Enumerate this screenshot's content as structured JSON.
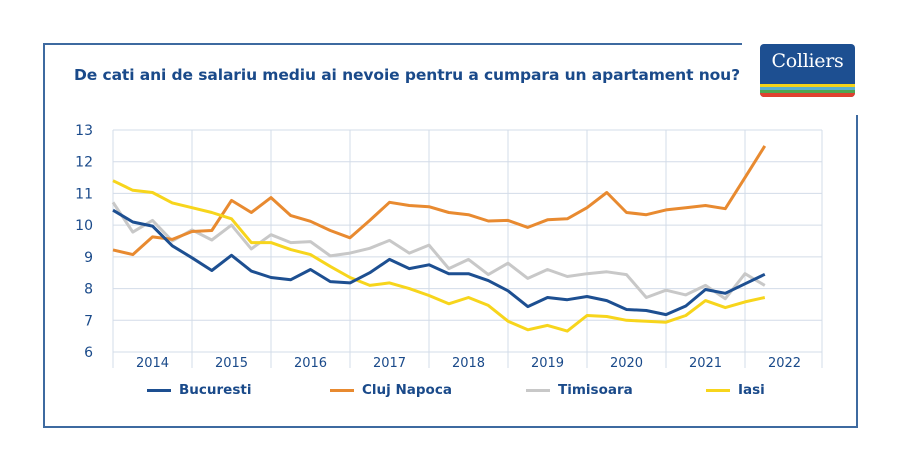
{
  "title": "De cati ani de salariu mediu ai nevoie pentru a cumpara un apartament nou?",
  "logo": {
    "text": "Colliers",
    "icon": "colliers-logo"
  },
  "colors": {
    "frame": "#3e6aa0",
    "text": "#1a4a8a",
    "grid": "#d3dce8",
    "Bucuresti": "#1d4f91",
    "Cluj Napoca": "#e88a30",
    "Timisoara": "#c8c8c8",
    "Iasi": "#f7d51c"
  },
  "chart_data": {
    "type": "line",
    "title": "De cati ani de salariu mediu ai nevoie pentru a cumpara un apartament nou?",
    "xlabel": "",
    "ylabel": "",
    "ylim": [
      6,
      13
    ],
    "yticks": [
      "6",
      "7",
      "8",
      "9",
      "10",
      "11",
      "12",
      "13"
    ],
    "xticks": [
      "2014",
      "2015",
      "2016",
      "2017",
      "2018",
      "2019",
      "2020",
      "2021",
      "2022"
    ],
    "x_periods": "quarterly, 2014 Q1 to 2022 Q2",
    "grid": true,
    "legend_position": "bottom",
    "series": [
      {
        "name": "Bucuresti",
        "values": [
          10.47,
          10.1,
          9.97,
          9.35,
          8.97,
          8.57,
          9.05,
          8.55,
          8.35,
          8.28,
          8.6,
          8.22,
          8.18,
          8.5,
          8.92,
          8.63,
          8.75,
          8.47,
          8.47,
          8.25,
          7.93,
          7.43,
          7.72,
          7.65,
          7.75,
          7.62,
          7.34,
          7.31,
          7.18,
          7.45,
          7.97,
          7.85,
          8.15,
          8.45
        ]
      },
      {
        "name": "Cluj Napoca",
        "values": [
          9.22,
          9.07,
          9.63,
          9.55,
          9.8,
          9.83,
          10.78,
          10.4,
          10.87,
          10.3,
          10.12,
          9.83,
          9.6,
          10.15,
          10.72,
          10.62,
          10.58,
          10.4,
          10.33,
          10.13,
          10.15,
          9.93,
          10.17,
          10.2,
          10.55,
          11.03,
          10.4,
          10.33,
          10.48,
          10.55,
          10.62,
          10.52,
          11.5,
          12.5
        ]
      },
      {
        "name": "Timisoara",
        "values": [
          10.72,
          9.78,
          10.15,
          9.5,
          9.85,
          9.53,
          10.0,
          9.25,
          9.7,
          9.45,
          9.48,
          9.03,
          9.12,
          9.27,
          9.52,
          9.12,
          9.37,
          8.63,
          8.92,
          8.44,
          8.8,
          8.32,
          8.6,
          8.38,
          8.47,
          8.53,
          8.44,
          7.72,
          7.95,
          7.8,
          8.1,
          7.68,
          8.47,
          8.1
        ]
      },
      {
        "name": "Iasi",
        "values": [
          11.4,
          11.1,
          11.03,
          10.7,
          10.55,
          10.4,
          10.2,
          9.45,
          9.45,
          9.23,
          9.07,
          8.7,
          8.35,
          8.1,
          8.18,
          8.0,
          7.78,
          7.52,
          7.72,
          7.47,
          6.97,
          6.7,
          6.84,
          6.66,
          7.15,
          7.12,
          7.0,
          6.97,
          6.94,
          7.15,
          7.62,
          7.4,
          7.58,
          7.72
        ]
      }
    ]
  },
  "legend": [
    {
      "label": "Bucuresti"
    },
    {
      "label": "Cluj Napoca"
    },
    {
      "label": "Timisoara"
    },
    {
      "label": "Iasi"
    }
  ]
}
